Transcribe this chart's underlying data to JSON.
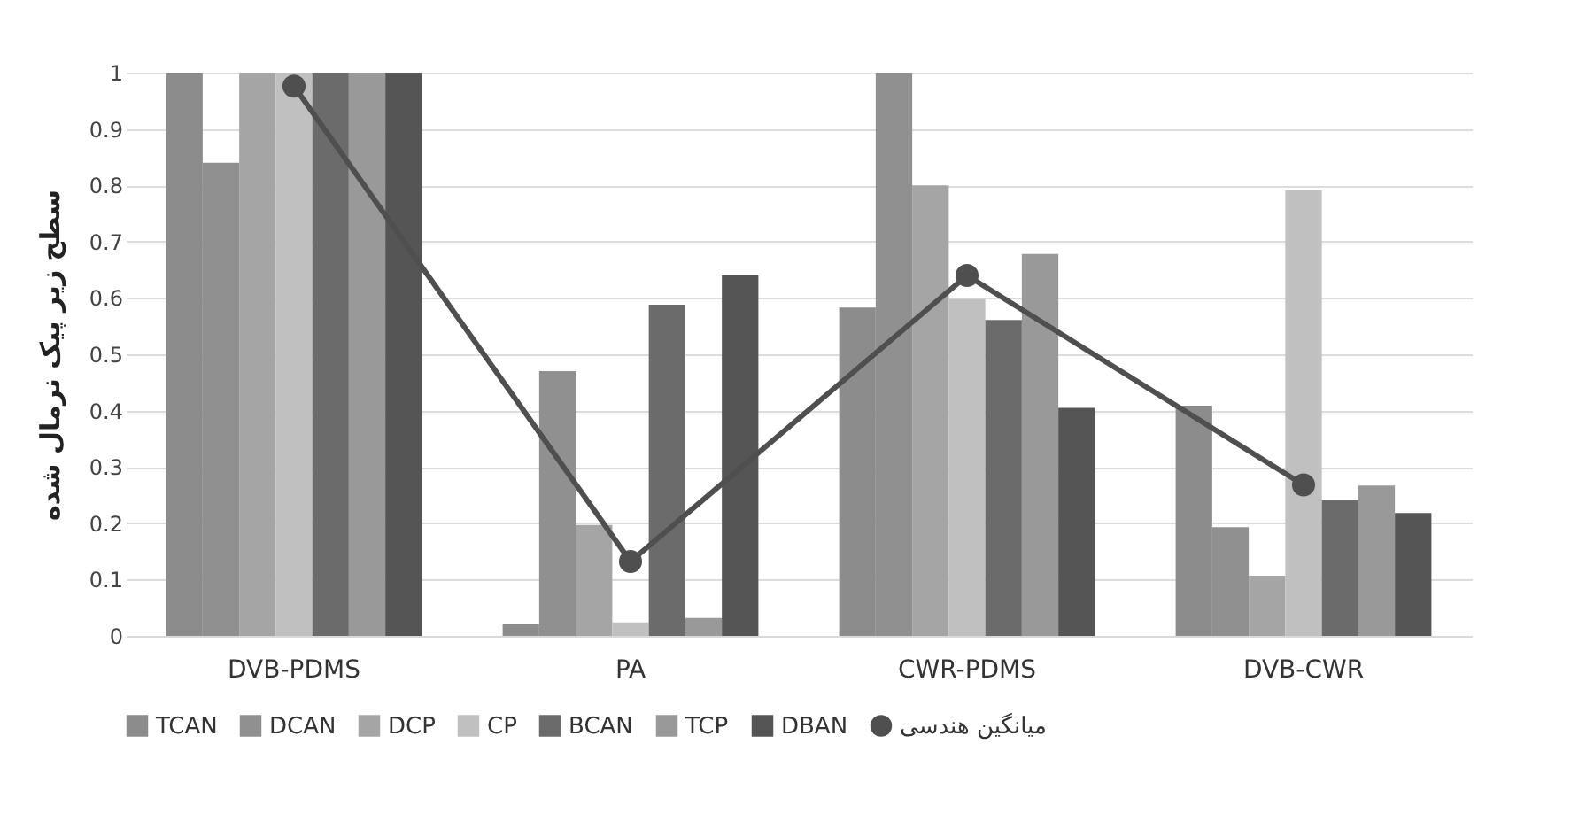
{
  "chart_data": {
    "type": "bar",
    "ylabel": "سطح زیر پیک نرمال شده",
    "categories": [
      "DVB-PDMS",
      "PA",
      "CWR-PDMS",
      "DVB-CWR"
    ],
    "series": [
      {
        "name": "TCAN",
        "color": "#8c8c8c",
        "values": [
          1,
          0.021,
          0.583,
          0.409
        ]
      },
      {
        "name": "DCAN",
        "color": "#909090",
        "values": [
          0.84,
          0.47,
          1,
          0.193
        ]
      },
      {
        "name": "DCP",
        "color": "#a5a5a5",
        "values": [
          1,
          0.197,
          0.8,
          0.107
        ]
      },
      {
        "name": "CP",
        "color": "#c0c0c0",
        "values": [
          1,
          0.024,
          0.598,
          0.791
        ]
      },
      {
        "name": "BCAN",
        "color": "#6b6b6b",
        "values": [
          1,
          0.588,
          0.561,
          0.241
        ]
      },
      {
        "name": "TCP",
        "color": "#999999",
        "values": [
          1,
          0.032,
          0.678,
          0.267
        ]
      },
      {
        "name": "DBAN",
        "color": "#555555",
        "values": [
          1,
          0.64,
          0.405,
          0.218
        ]
      },
      {
        "name": "میانگین هندسی",
        "type": "line",
        "color": "#4f4f4f",
        "values": [
          0.976,
          0.132,
          0.64,
          0.268
        ]
      }
    ],
    "ylim": [
      0,
      1
    ],
    "yticks": [
      0,
      0.1,
      0.2,
      0.3,
      0.4,
      0.5,
      0.6,
      0.7,
      0.8,
      0.9,
      1
    ],
    "grid": "y",
    "legend": "bottom",
    "marker": "circle"
  }
}
